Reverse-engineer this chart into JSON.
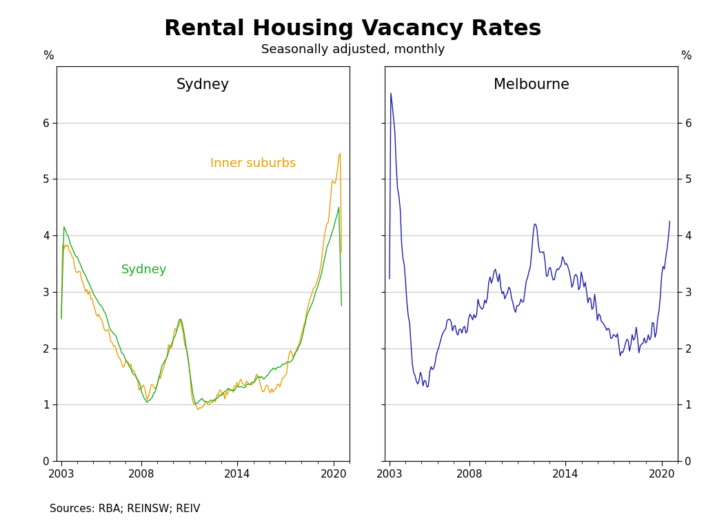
{
  "title": "Rental Housing Vacancy Rates",
  "subtitle": "Seasonally adjusted, monthly",
  "source": "Sources: RBA; REINSW; REIV",
  "sydney_label": "Sydney",
  "melbourne_label": "Melbourne",
  "inner_suburbs_label": "Inner suburbs",
  "sydney_color": "#22aa22",
  "inner_suburbs_color": "#e8a000",
  "melbourne_color": "#1a1aaa",
  "ylim": [
    0,
    7
  ],
  "yticks": [
    0,
    1,
    2,
    3,
    4,
    5,
    6
  ],
  "background_color": "#ffffff",
  "ylabel_pct": "%"
}
